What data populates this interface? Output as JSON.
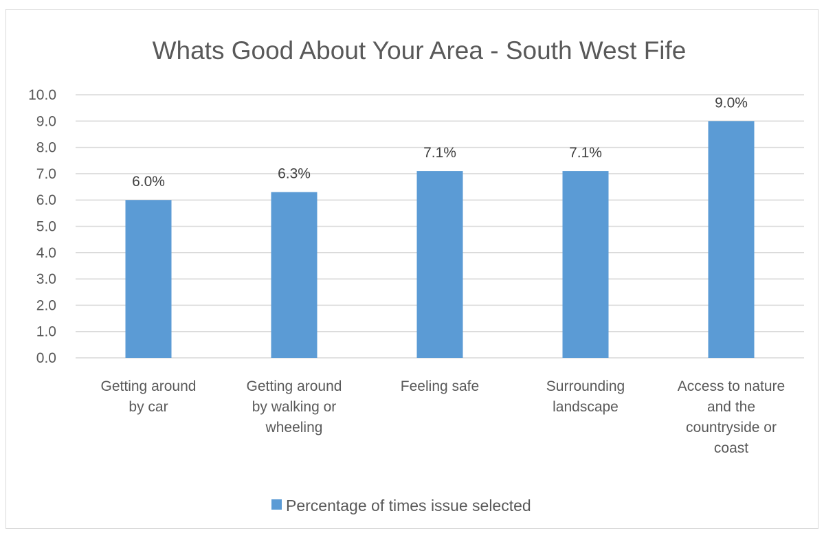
{
  "chart_data": {
    "type": "bar",
    "title": "Whats Good About Your Area - South West Fife",
    "categories": [
      [
        "Getting around",
        "by car"
      ],
      [
        "Getting around",
        "by walking or",
        "wheeling"
      ],
      [
        "Feeling safe"
      ],
      [
        "Surrounding",
        "landscape"
      ],
      [
        "Access to nature",
        "and the",
        "countryside or",
        "coast"
      ]
    ],
    "series": [
      {
        "name": "Percentage of times issue selected",
        "values": [
          6.0,
          6.3,
          7.1,
          7.1,
          9.0
        ],
        "data_labels": [
          "6.0%",
          "6.3%",
          "7.1%",
          "7.1%",
          "9.0%"
        ],
        "color": "#5b9bd5"
      }
    ],
    "ylim": [
      0,
      10
    ],
    "yticks": [
      "0.0",
      "1.0",
      "2.0",
      "3.0",
      "4.0",
      "5.0",
      "6.0",
      "7.0",
      "8.0",
      "9.0",
      "10.0"
    ],
    "grid": true,
    "legend_position": "bottom"
  }
}
